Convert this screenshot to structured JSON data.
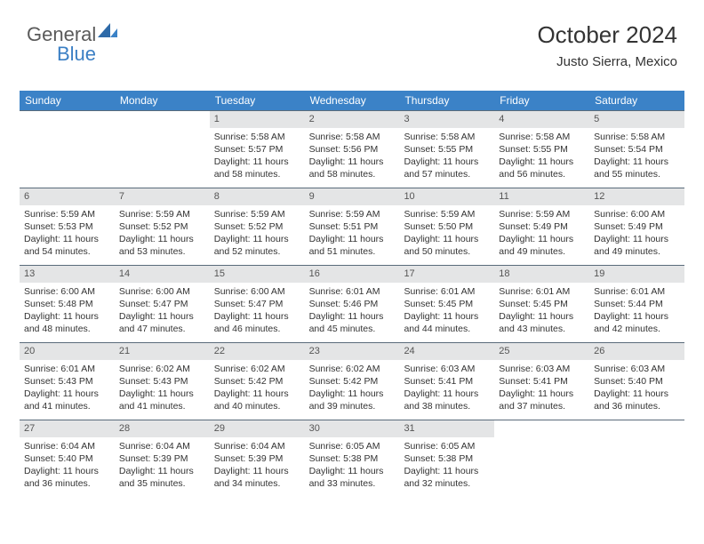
{
  "logo": {
    "part1": "General",
    "part2": "Blue"
  },
  "header": {
    "month_title": "October 2024",
    "location": "Justo Sierra, Mexico"
  },
  "colors": {
    "header_bg": "#3b82c7",
    "header_fg": "#ffffff",
    "daynum_bg": "#e4e5e6",
    "row_border": "#5a6b7a",
    "text": "#333333",
    "logo_gray": "#5a5a5a",
    "logo_blue": "#3b7fc4",
    "page_bg": "#ffffff"
  },
  "typography": {
    "month_title_fontsize": 26,
    "location_fontsize": 15,
    "dayhead_fontsize": 12,
    "daynum_fontsize": 11,
    "body_fontsize": 10.5
  },
  "calendar": {
    "type": "table",
    "day_headers": [
      "Sunday",
      "Monday",
      "Tuesday",
      "Wednesday",
      "Thursday",
      "Friday",
      "Saturday"
    ],
    "weeks": [
      [
        null,
        null,
        {
          "n": "1",
          "sr": "Sunrise: 5:58 AM",
          "ss": "Sunset: 5:57 PM",
          "d1": "Daylight: 11 hours",
          "d2": "and 58 minutes."
        },
        {
          "n": "2",
          "sr": "Sunrise: 5:58 AM",
          "ss": "Sunset: 5:56 PM",
          "d1": "Daylight: 11 hours",
          "d2": "and 58 minutes."
        },
        {
          "n": "3",
          "sr": "Sunrise: 5:58 AM",
          "ss": "Sunset: 5:55 PM",
          "d1": "Daylight: 11 hours",
          "d2": "and 57 minutes."
        },
        {
          "n": "4",
          "sr": "Sunrise: 5:58 AM",
          "ss": "Sunset: 5:55 PM",
          "d1": "Daylight: 11 hours",
          "d2": "and 56 minutes."
        },
        {
          "n": "5",
          "sr": "Sunrise: 5:58 AM",
          "ss": "Sunset: 5:54 PM",
          "d1": "Daylight: 11 hours",
          "d2": "and 55 minutes."
        }
      ],
      [
        {
          "n": "6",
          "sr": "Sunrise: 5:59 AM",
          "ss": "Sunset: 5:53 PM",
          "d1": "Daylight: 11 hours",
          "d2": "and 54 minutes."
        },
        {
          "n": "7",
          "sr": "Sunrise: 5:59 AM",
          "ss": "Sunset: 5:52 PM",
          "d1": "Daylight: 11 hours",
          "d2": "and 53 minutes."
        },
        {
          "n": "8",
          "sr": "Sunrise: 5:59 AM",
          "ss": "Sunset: 5:52 PM",
          "d1": "Daylight: 11 hours",
          "d2": "and 52 minutes."
        },
        {
          "n": "9",
          "sr": "Sunrise: 5:59 AM",
          "ss": "Sunset: 5:51 PM",
          "d1": "Daylight: 11 hours",
          "d2": "and 51 minutes."
        },
        {
          "n": "10",
          "sr": "Sunrise: 5:59 AM",
          "ss": "Sunset: 5:50 PM",
          "d1": "Daylight: 11 hours",
          "d2": "and 50 minutes."
        },
        {
          "n": "11",
          "sr": "Sunrise: 5:59 AM",
          "ss": "Sunset: 5:49 PM",
          "d1": "Daylight: 11 hours",
          "d2": "and 49 minutes."
        },
        {
          "n": "12",
          "sr": "Sunrise: 6:00 AM",
          "ss": "Sunset: 5:49 PM",
          "d1": "Daylight: 11 hours",
          "d2": "and 49 minutes."
        }
      ],
      [
        {
          "n": "13",
          "sr": "Sunrise: 6:00 AM",
          "ss": "Sunset: 5:48 PM",
          "d1": "Daylight: 11 hours",
          "d2": "and 48 minutes."
        },
        {
          "n": "14",
          "sr": "Sunrise: 6:00 AM",
          "ss": "Sunset: 5:47 PM",
          "d1": "Daylight: 11 hours",
          "d2": "and 47 minutes."
        },
        {
          "n": "15",
          "sr": "Sunrise: 6:00 AM",
          "ss": "Sunset: 5:47 PM",
          "d1": "Daylight: 11 hours",
          "d2": "and 46 minutes."
        },
        {
          "n": "16",
          "sr": "Sunrise: 6:01 AM",
          "ss": "Sunset: 5:46 PM",
          "d1": "Daylight: 11 hours",
          "d2": "and 45 minutes."
        },
        {
          "n": "17",
          "sr": "Sunrise: 6:01 AM",
          "ss": "Sunset: 5:45 PM",
          "d1": "Daylight: 11 hours",
          "d2": "and 44 minutes."
        },
        {
          "n": "18",
          "sr": "Sunrise: 6:01 AM",
          "ss": "Sunset: 5:45 PM",
          "d1": "Daylight: 11 hours",
          "d2": "and 43 minutes."
        },
        {
          "n": "19",
          "sr": "Sunrise: 6:01 AM",
          "ss": "Sunset: 5:44 PM",
          "d1": "Daylight: 11 hours",
          "d2": "and 42 minutes."
        }
      ],
      [
        {
          "n": "20",
          "sr": "Sunrise: 6:01 AM",
          "ss": "Sunset: 5:43 PM",
          "d1": "Daylight: 11 hours",
          "d2": "and 41 minutes."
        },
        {
          "n": "21",
          "sr": "Sunrise: 6:02 AM",
          "ss": "Sunset: 5:43 PM",
          "d1": "Daylight: 11 hours",
          "d2": "and 41 minutes."
        },
        {
          "n": "22",
          "sr": "Sunrise: 6:02 AM",
          "ss": "Sunset: 5:42 PM",
          "d1": "Daylight: 11 hours",
          "d2": "and 40 minutes."
        },
        {
          "n": "23",
          "sr": "Sunrise: 6:02 AM",
          "ss": "Sunset: 5:42 PM",
          "d1": "Daylight: 11 hours",
          "d2": "and 39 minutes."
        },
        {
          "n": "24",
          "sr": "Sunrise: 6:03 AM",
          "ss": "Sunset: 5:41 PM",
          "d1": "Daylight: 11 hours",
          "d2": "and 38 minutes."
        },
        {
          "n": "25",
          "sr": "Sunrise: 6:03 AM",
          "ss": "Sunset: 5:41 PM",
          "d1": "Daylight: 11 hours",
          "d2": "and 37 minutes."
        },
        {
          "n": "26",
          "sr": "Sunrise: 6:03 AM",
          "ss": "Sunset: 5:40 PM",
          "d1": "Daylight: 11 hours",
          "d2": "and 36 minutes."
        }
      ],
      [
        {
          "n": "27",
          "sr": "Sunrise: 6:04 AM",
          "ss": "Sunset: 5:40 PM",
          "d1": "Daylight: 11 hours",
          "d2": "and 36 minutes."
        },
        {
          "n": "28",
          "sr": "Sunrise: 6:04 AM",
          "ss": "Sunset: 5:39 PM",
          "d1": "Daylight: 11 hours",
          "d2": "and 35 minutes."
        },
        {
          "n": "29",
          "sr": "Sunrise: 6:04 AM",
          "ss": "Sunset: 5:39 PM",
          "d1": "Daylight: 11 hours",
          "d2": "and 34 minutes."
        },
        {
          "n": "30",
          "sr": "Sunrise: 6:05 AM",
          "ss": "Sunset: 5:38 PM",
          "d1": "Daylight: 11 hours",
          "d2": "and 33 minutes."
        },
        {
          "n": "31",
          "sr": "Sunrise: 6:05 AM",
          "ss": "Sunset: 5:38 PM",
          "d1": "Daylight: 11 hours",
          "d2": "and 32 minutes."
        },
        null,
        null
      ]
    ]
  }
}
